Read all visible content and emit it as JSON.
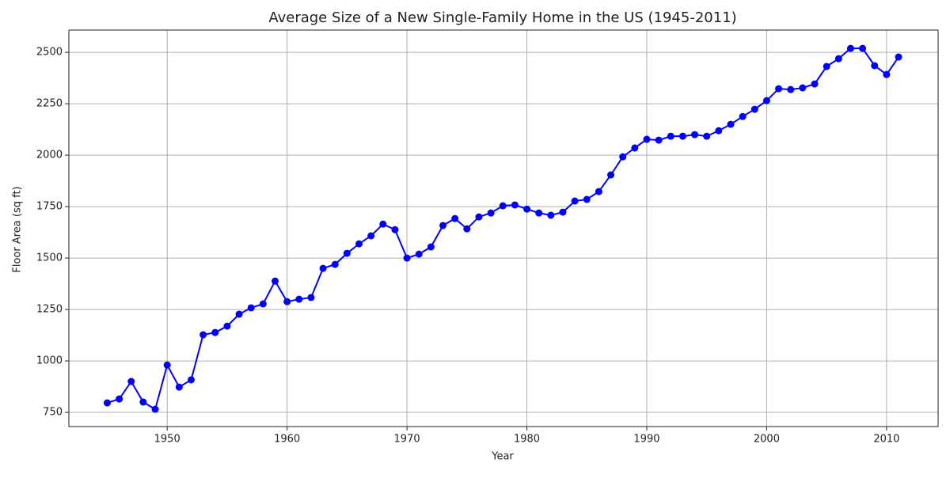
{
  "chart_data": {
    "type": "line",
    "title": "Average Size of a New Single-Family Home in the US (1945-2011)",
    "x_label": "Year",
    "y_label": "Floor Area (sq ft)",
    "x": [
      1945,
      1946,
      1947,
      1948,
      1949,
      1950,
      1951,
      1952,
      1953,
      1954,
      1955,
      1956,
      1957,
      1958,
      1959,
      1960,
      1961,
      1962,
      1963,
      1964,
      1965,
      1966,
      1967,
      1968,
      1969,
      1970,
      1971,
      1972,
      1973,
      1974,
      1975,
      1976,
      1977,
      1978,
      1979,
      1980,
      1981,
      1982,
      1983,
      1984,
      1985,
      1986,
      1987,
      1988,
      1989,
      1990,
      1991,
      1992,
      1993,
      1994,
      1995,
      1996,
      1997,
      1998,
      1999,
      2000,
      2001,
      2002,
      2003,
      2004,
      2005,
      2006,
      2007,
      2008,
      2009,
      2010,
      2011
    ],
    "series": [
      {
        "color": "#0000ff",
        "values": [
          796,
          815,
          900,
          800,
          765,
          980,
          873,
          908,
          1127,
          1138,
          1169,
          1227,
          1258,
          1277,
          1388,
          1288,
          1300,
          1308,
          1450,
          1469,
          1523,
          1569,
          1608,
          1665,
          1638,
          1500,
          1519,
          1554,
          1658,
          1692,
          1642,
          1700,
          1719,
          1754,
          1758,
          1738,
          1719,
          1708,
          1723,
          1777,
          1785,
          1823,
          1904,
          1992,
          2035,
          2077,
          2073,
          2092,
          2092,
          2100,
          2092,
          2119,
          2150,
          2188,
          2223,
          2265,
          2323,
          2319,
          2327,
          2346,
          2431,
          2469,
          2519,
          2519,
          2435,
          2392,
          2477
        ]
      }
    ],
    "xlim": [
      1941.8,
      2014.3
    ],
    "xticks": [
      1950,
      1960,
      1970,
      1980,
      1990,
      2000,
      2010
    ],
    "ylim": [
      681,
      2608
    ],
    "yticks": [
      750,
      1000,
      1250,
      1500,
      1750,
      2000,
      2250,
      2500
    ],
    "grid": true
  }
}
